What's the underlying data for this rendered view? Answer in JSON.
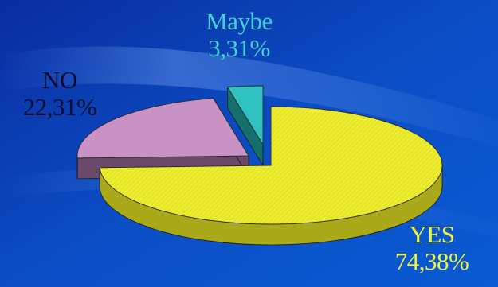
{
  "colors": {
    "yes": "#F2F23A",
    "yes_side": "#A9A91A",
    "no": "#C992C4",
    "no_side": "#6A4968",
    "maybe": "#2FC2C0",
    "maybe_side": "#156F6D",
    "label_yes": "#F2F23A",
    "label_maybe": "#3FD2D0",
    "label_no": "#0B0B2A"
  },
  "chart_data": {
    "type": "pie",
    "style": "3d-exploded",
    "slices": [
      {
        "label": "YES",
        "value_text": "74,38%",
        "value": 74.38,
        "color": "#F2F23A"
      },
      {
        "label": "NO",
        "value_text": "22,31%",
        "value": 22.31,
        "color": "#C992C4"
      },
      {
        "label": "Maybe",
        "value_text": "3,31%",
        "value": 3.31,
        "color": "#2FC2C0"
      }
    ]
  }
}
